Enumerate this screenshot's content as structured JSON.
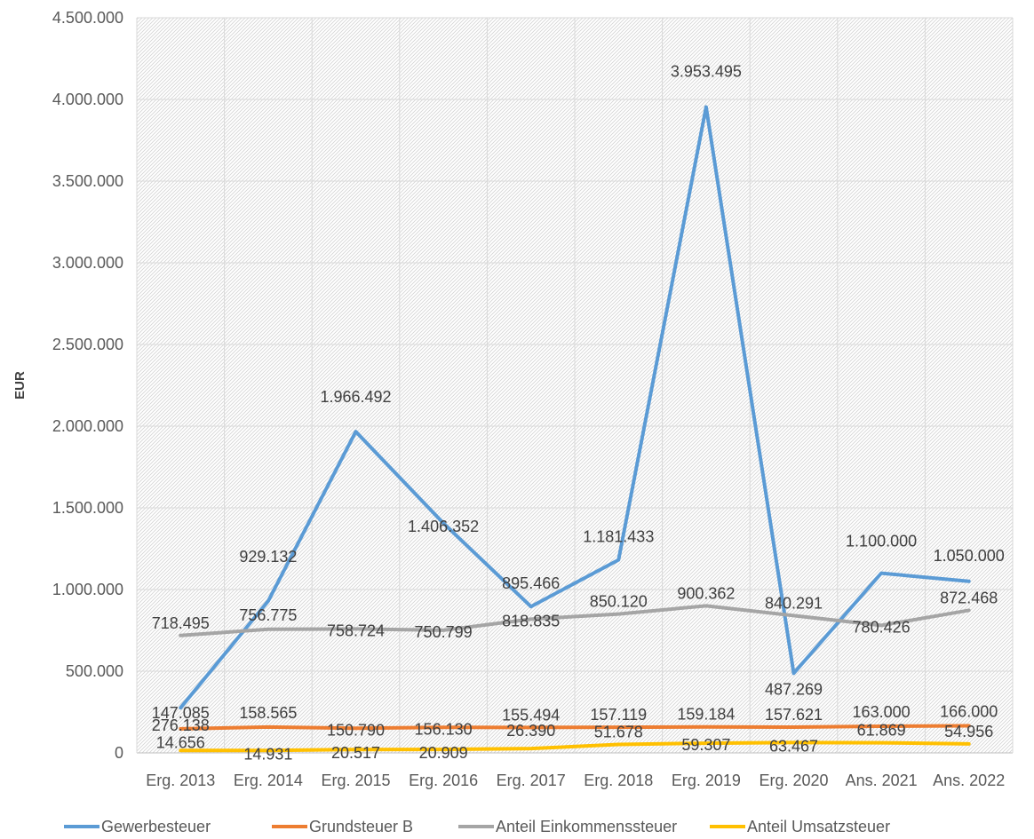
{
  "chart_data": {
    "type": "line",
    "title": "",
    "xlabel": "",
    "ylabel": "EUR",
    "ylim": [
      0,
      4500000
    ],
    "ytick_step": 500000,
    "ytick_labels": [
      "0",
      "500.000",
      "1.000.000",
      "1.500.000",
      "2.000.000",
      "2.500.000",
      "3.000.000",
      "3.500.000",
      "4.000.000",
      "4.500.000"
    ],
    "grid": true,
    "legend_position": "bottom",
    "categories": [
      "Erg. 2013",
      "Erg. 2014",
      "Erg. 2015",
      "Erg. 2016",
      "Erg. 2017",
      "Erg. 2018",
      "Erg. 2019",
      "Erg. 2020",
      "Ans. 2021",
      "Ans. 2022"
    ],
    "series": [
      {
        "name": "Gewerbesteuer",
        "color": "#5B9BD5",
        "values": [
          276138,
          929132,
          1966492,
          1406352,
          895466,
          1181433,
          3953495,
          487269,
          1100000,
          1050000
        ],
        "labels": [
          "276.138",
          "929.132",
          "1.966.492",
          "1.406.352",
          "895.466",
          "1.181.433",
          "3.953.495",
          "487.269",
          "1.100.000",
          "1.050.000"
        ]
      },
      {
        "name": "Grundsteuer B",
        "color": "#ED7D31",
        "values": [
          147085,
          158565,
          150790,
          156130,
          155494,
          157119,
          159184,
          157621,
          163000,
          166000
        ],
        "labels": [
          "147.085",
          "158.565",
          "150.790",
          "156.130",
          "155.494",
          "157.119",
          "159.184",
          "157.621",
          "163.000",
          "166.000"
        ]
      },
      {
        "name": "Anteil Einkommenssteuer",
        "color": "#A5A5A5",
        "values": [
          718495,
          756775,
          758724,
          750799,
          818835,
          850120,
          900362,
          840291,
          780426,
          872468
        ],
        "labels": [
          "718.495",
          "756.775",
          "758.724",
          "750.799",
          "818.835",
          "850.120",
          "900.362",
          "840.291",
          "780.426",
          "872.468"
        ]
      },
      {
        "name": "Anteil Umsatzsteuer",
        "color": "#FFC000",
        "values": [
          14656,
          14931,
          20517,
          20909,
          26390,
          51678,
          59307,
          63467,
          61869,
          54956
        ],
        "labels": [
          "14.656",
          "14.931",
          "20.517",
          "20.909",
          "26.390",
          "51.678",
          "59.307",
          "63.467",
          "61.869",
          "54.956"
        ]
      }
    ]
  }
}
